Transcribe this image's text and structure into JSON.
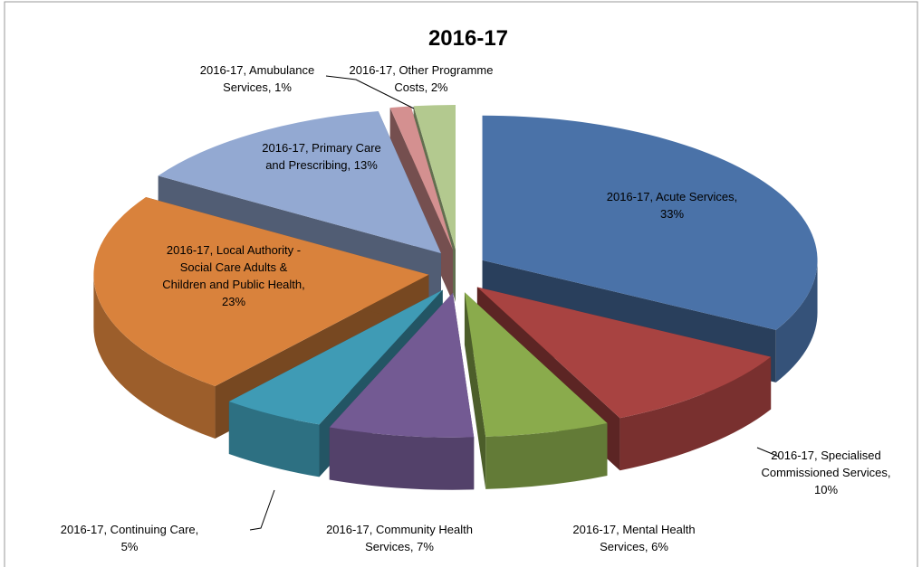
{
  "chart_data": {
    "type": "pie3d",
    "title": "2016-17",
    "values": [
      33,
      10,
      6,
      7,
      5,
      23,
      13,
      1,
      2
    ],
    "value_labels": [
      "2016-17, Acute Services, 33%",
      "2016-17, Specialised Commissioned Services, 10%",
      "2016-17, Mental Health Services, 6%",
      "2016-17, Community Health Services, 7%",
      "2016-17, Continuing Care, 5%",
      "2016-17, Local Authority - Social Care Adults & Children and Public Health, 23%",
      "2016-17, Primary Care and Prescribing, 13%",
      "2016-17, Amubulance Services, 1%",
      "2016-17, Other Programme Costs, 2%"
    ],
    "colors": [
      "#4a72a8",
      "#a84341",
      "#8aab4c",
      "#735a93",
      "#3f9bb5",
      "#d9823c",
      "#93a9d2",
      "#d49090",
      "#b3c98f"
    ]
  }
}
